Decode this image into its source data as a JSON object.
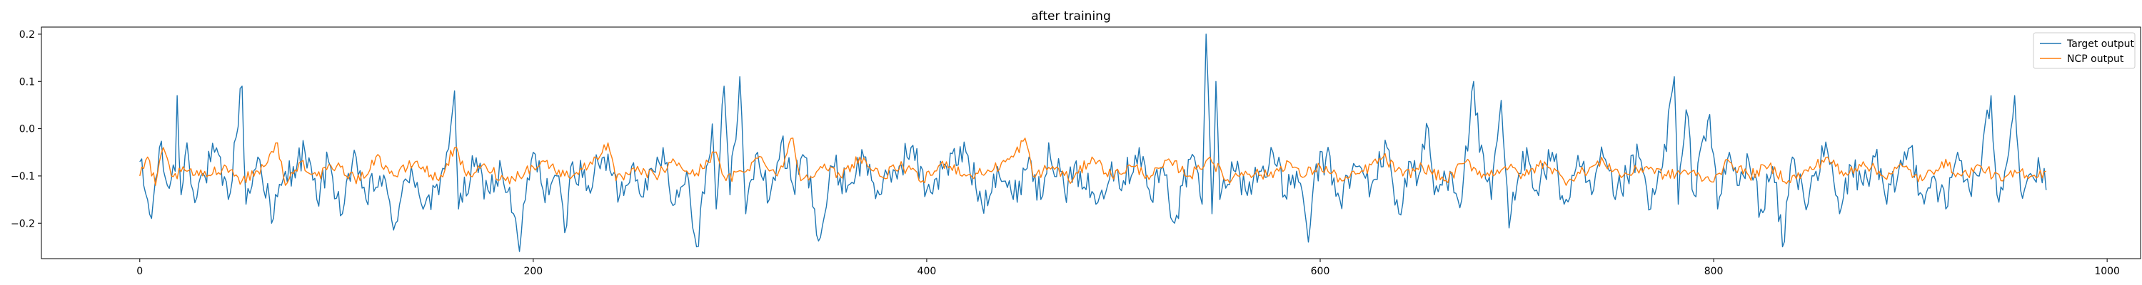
{
  "chart_data": {
    "type": "line",
    "title": "after training",
    "xlabel": "",
    "ylabel": "",
    "xlim": [
      -50,
      1017
    ],
    "ylim": [
      -0.275,
      0.215
    ],
    "x_ticks": [
      0,
      200,
      400,
      600,
      800,
      1000
    ],
    "y_ticks": [
      -0.2,
      -0.1,
      0.0,
      0.1,
      0.2
    ],
    "x_tick_labels": [
      "0",
      "200",
      "400",
      "600",
      "800",
      "1000"
    ],
    "y_tick_labels": [
      "−0.2",
      "−0.1",
      "0.0",
      "0.1",
      "0.2"
    ],
    "grid": false,
    "legend_position": "top-right",
    "n_points": 970,
    "series": [
      {
        "name": "Target output",
        "color": "#1f77b4",
        "keypoints": [
          [
            0,
            -0.07
          ],
          [
            2,
            -0.12
          ],
          [
            6,
            -0.19
          ],
          [
            10,
            -0.04
          ],
          [
            14,
            -0.12
          ],
          [
            18,
            -0.09
          ],
          [
            19,
            0.07
          ],
          [
            21,
            -0.14
          ],
          [
            24,
            -0.03
          ],
          [
            27,
            -0.13
          ],
          [
            33,
            -0.1
          ],
          [
            38,
            -0.05
          ],
          [
            45,
            -0.15
          ],
          [
            52,
            0.09
          ],
          [
            54,
            -0.16
          ],
          [
            60,
            -0.06
          ],
          [
            66,
            -0.15
          ],
          [
            67,
            -0.2
          ],
          [
            72,
            -0.12
          ],
          [
            78,
            -0.08
          ],
          [
            84,
            -0.05
          ],
          [
            90,
            -0.15
          ],
          [
            96,
            -0.07
          ],
          [
            103,
            -0.18
          ],
          [
            110,
            -0.06
          ],
          [
            115,
            -0.15
          ],
          [
            122,
            -0.1
          ],
          [
            130,
            -0.2
          ],
          [
            138,
            -0.08
          ],
          [
            145,
            -0.16
          ],
          [
            152,
            -0.14
          ],
          [
            156,
            -0.05
          ],
          [
            160,
            0.08
          ],
          [
            162,
            -0.17
          ],
          [
            170,
            -0.08
          ],
          [
            177,
            -0.13
          ],
          [
            184,
            -0.09
          ],
          [
            190,
            -0.18
          ],
          [
            193,
            -0.26
          ],
          [
            196,
            -0.15
          ],
          [
            200,
            -0.05
          ],
          [
            205,
            -0.13
          ],
          [
            212,
            -0.1
          ],
          [
            216,
            -0.22
          ],
          [
            220,
            -0.07
          ],
          [
            228,
            -0.12
          ],
          [
            236,
            -0.06
          ],
          [
            244,
            -0.14
          ],
          [
            250,
            -0.08
          ],
          [
            258,
            -0.13
          ],
          [
            266,
            -0.04
          ],
          [
            272,
            -0.16
          ],
          [
            278,
            -0.09
          ],
          [
            283,
            -0.25
          ],
          [
            288,
            -0.08
          ],
          [
            291,
            0.01
          ],
          [
            293,
            -0.17
          ],
          [
            297,
            0.09
          ],
          [
            300,
            -0.14
          ],
          [
            305,
            0.11
          ],
          [
            308,
            -0.18
          ],
          [
            314,
            -0.05
          ],
          [
            320,
            -0.15
          ],
          [
            326,
            -0.03
          ],
          [
            332,
            -0.12
          ],
          [
            338,
            -0.06
          ],
          [
            343,
            -0.17
          ],
          [
            346,
            -0.23
          ],
          [
            352,
            -0.08
          ],
          [
            360,
            -0.12
          ],
          [
            368,
            -0.06
          ],
          [
            376,
            -0.14
          ],
          [
            384,
            -0.09
          ],
          [
            392,
            -0.04
          ],
          [
            400,
            -0.13
          ],
          [
            410,
            -0.08
          ],
          [
            420,
            -0.05
          ],
          [
            428,
            -0.16
          ],
          [
            436,
            -0.08
          ],
          [
            444,
            -0.15
          ],
          [
            452,
            -0.06
          ],
          [
            458,
            -0.15
          ],
          [
            462,
            -0.03
          ],
          [
            470,
            -0.13
          ],
          [
            478,
            -0.09
          ],
          [
            486,
            -0.16
          ],
          [
            494,
            -0.07
          ],
          [
            500,
            -0.11
          ],
          [
            508,
            -0.04
          ],
          [
            514,
            -0.15
          ],
          [
            520,
            -0.08
          ],
          [
            526,
            -0.2
          ],
          [
            530,
            -0.12
          ],
          [
            536,
            -0.06
          ],
          [
            540,
            -0.16
          ],
          [
            542,
            0.2
          ],
          [
            545,
            -0.18
          ],
          [
            547,
            0.1
          ],
          [
            549,
            -0.15
          ],
          [
            555,
            -0.07
          ],
          [
            562,
            -0.13
          ],
          [
            570,
            -0.09
          ],
          [
            576,
            -0.05
          ],
          [
            582,
            -0.14
          ],
          [
            588,
            -0.09
          ],
          [
            594,
            -0.24
          ],
          [
            597,
            -0.1
          ],
          [
            603,
            -0.06
          ],
          [
            610,
            -0.15
          ],
          [
            618,
            -0.08
          ],
          [
            626,
            -0.12
          ],
          [
            634,
            -0.04
          ],
          [
            640,
            -0.18
          ],
          [
            646,
            -0.07
          ],
          [
            650,
            -0.1
          ],
          [
            655,
            0.0
          ],
          [
            658,
            -0.14
          ],
          [
            666,
            -0.09
          ],
          [
            672,
            -0.15
          ],
          [
            678,
            0.1
          ],
          [
            681,
            -0.05
          ],
          [
            687,
            -0.15
          ],
          [
            692,
            0.06
          ],
          [
            696,
            -0.21
          ],
          [
            700,
            -0.12
          ],
          [
            705,
            -0.04
          ],
          [
            710,
            -0.13
          ],
          [
            718,
            -0.05
          ],
          [
            724,
            -0.16
          ],
          [
            732,
            -0.08
          ],
          [
            738,
            -0.14
          ],
          [
            744,
            -0.06
          ],
          [
            750,
            -0.15
          ],
          [
            756,
            -0.1
          ],
          [
            762,
            -0.06
          ],
          [
            768,
            -0.17
          ],
          [
            774,
            -0.08
          ],
          [
            780,
            0.11
          ],
          [
            782,
            -0.16
          ],
          [
            786,
            0.04
          ],
          [
            790,
            -0.14
          ],
          [
            794,
            -0.03
          ],
          [
            798,
            0.03
          ],
          [
            802,
            -0.17
          ],
          [
            808,
            -0.05
          ],
          [
            812,
            -0.12
          ],
          [
            818,
            -0.07
          ],
          [
            824,
            -0.17
          ],
          [
            830,
            -0.08
          ],
          [
            835,
            -0.25
          ],
          [
            840,
            -0.06
          ],
          [
            846,
            -0.15
          ],
          [
            852,
            -0.09
          ],
          [
            858,
            -0.05
          ],
          [
            864,
            -0.18
          ],
          [
            870,
            -0.08
          ],
          [
            876,
            -0.12
          ],
          [
            882,
            -0.06
          ],
          [
            888,
            -0.16
          ],
          [
            894,
            -0.09
          ],
          [
            900,
            -0.04
          ],
          [
            906,
            -0.14
          ],
          [
            912,
            -0.1
          ],
          [
            918,
            -0.17
          ],
          [
            924,
            -0.05
          ],
          [
            930,
            -0.13
          ],
          [
            936,
            -0.08
          ],
          [
            941,
            0.07
          ],
          [
            944,
            -0.14
          ],
          [
            948,
            -0.09
          ],
          [
            953,
            0.07
          ],
          [
            956,
            -0.13
          ],
          [
            962,
            -0.1
          ],
          [
            966,
            -0.09
          ],
          [
            969,
            -0.13
          ]
        ]
      },
      {
        "name": "NCP output",
        "color": "#ff7f0e",
        "keypoints": [
          [
            0,
            -0.1
          ],
          [
            4,
            -0.06
          ],
          [
            8,
            -0.12
          ],
          [
            12,
            -0.04
          ],
          [
            16,
            -0.1
          ],
          [
            24,
            -0.09
          ],
          [
            32,
            -0.1
          ],
          [
            44,
            -0.08
          ],
          [
            52,
            -0.11
          ],
          [
            60,
            -0.09
          ],
          [
            68,
            -0.05
          ],
          [
            70,
            -0.03
          ],
          [
            74,
            -0.12
          ],
          [
            82,
            -0.07
          ],
          [
            90,
            -0.1
          ],
          [
            100,
            -0.08
          ],
          [
            112,
            -0.11
          ],
          [
            120,
            -0.06
          ],
          [
            130,
            -0.1
          ],
          [
            140,
            -0.07
          ],
          [
            152,
            -0.11
          ],
          [
            160,
            -0.04
          ],
          [
            166,
            -0.1
          ],
          [
            176,
            -0.08
          ],
          [
            186,
            -0.11
          ],
          [
            196,
            -0.09
          ],
          [
            206,
            -0.07
          ],
          [
            216,
            -0.1
          ],
          [
            228,
            -0.08
          ],
          [
            238,
            -0.03
          ],
          [
            242,
            -0.11
          ],
          [
            252,
            -0.09
          ],
          [
            262,
            -0.1
          ],
          [
            272,
            -0.07
          ],
          [
            282,
            -0.1
          ],
          [
            292,
            -0.05
          ],
          [
            298,
            -0.11
          ],
          [
            306,
            -0.09
          ],
          [
            316,
            -0.06
          ],
          [
            324,
            -0.1
          ],
          [
            332,
            -0.02
          ],
          [
            336,
            -0.11
          ],
          [
            346,
            -0.08
          ],
          [
            356,
            -0.1
          ],
          [
            366,
            -0.06
          ],
          [
            376,
            -0.1
          ],
          [
            388,
            -0.08
          ],
          [
            398,
            -0.11
          ],
          [
            410,
            -0.07
          ],
          [
            420,
            -0.1
          ],
          [
            432,
            -0.09
          ],
          [
            444,
            -0.06
          ],
          [
            450,
            -0.02
          ],
          [
            454,
            -0.1
          ],
          [
            464,
            -0.08
          ],
          [
            474,
            -0.11
          ],
          [
            484,
            -0.06
          ],
          [
            494,
            -0.1
          ],
          [
            504,
            -0.08
          ],
          [
            514,
            -0.1
          ],
          [
            524,
            -0.07
          ],
          [
            534,
            -0.1
          ],
          [
            544,
            -0.06
          ],
          [
            552,
            -0.11
          ],
          [
            562,
            -0.09
          ],
          [
            574,
            -0.1
          ],
          [
            584,
            -0.07
          ],
          [
            590,
            -0.1
          ],
          [
            600,
            -0.08
          ],
          [
            612,
            -0.11
          ],
          [
            622,
            -0.09
          ],
          [
            632,
            -0.06
          ],
          [
            642,
            -0.1
          ],
          [
            652,
            -0.08
          ],
          [
            664,
            -0.11
          ],
          [
            674,
            -0.07
          ],
          [
            684,
            -0.1
          ],
          [
            694,
            -0.08
          ],
          [
            704,
            -0.1
          ],
          [
            714,
            -0.07
          ],
          [
            724,
            -0.11
          ],
          [
            734,
            -0.09
          ],
          [
            744,
            -0.07
          ],
          [
            754,
            -0.1
          ],
          [
            766,
            -0.08
          ],
          [
            776,
            -0.1
          ],
          [
            786,
            -0.09
          ],
          [
            798,
            -0.11
          ],
          [
            808,
            -0.07
          ],
          [
            818,
            -0.1
          ],
          [
            828,
            -0.08
          ],
          [
            838,
            -0.11
          ],
          [
            848,
            -0.09
          ],
          [
            858,
            -0.06
          ],
          [
            866,
            -0.1
          ],
          [
            876,
            -0.07
          ],
          [
            886,
            -0.1
          ],
          [
            896,
            -0.08
          ],
          [
            906,
            -0.11
          ],
          [
            916,
            -0.07
          ],
          [
            926,
            -0.1
          ],
          [
            936,
            -0.08
          ],
          [
            946,
            -0.11
          ],
          [
            956,
            -0.09
          ],
          [
            962,
            -0.1
          ],
          [
            969,
            -0.09
          ]
        ]
      }
    ]
  }
}
